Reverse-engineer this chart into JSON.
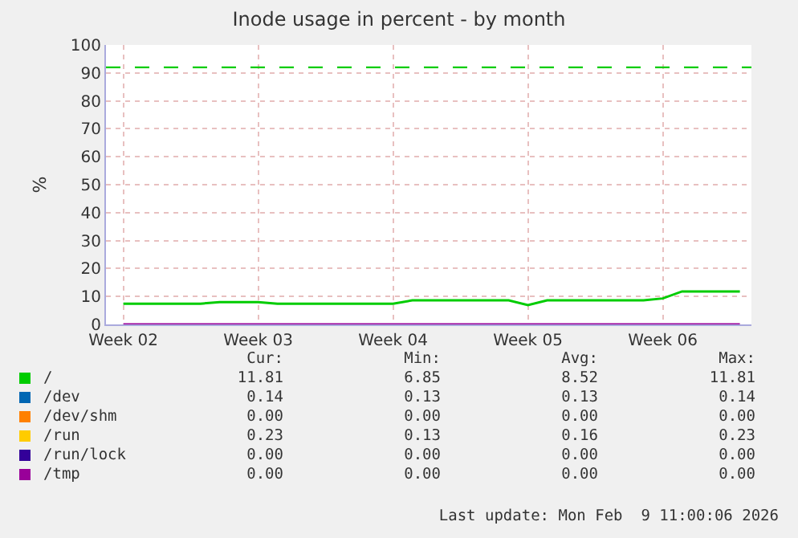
{
  "chart_data": {
    "type": "line",
    "title": "Inode usage in percent - by month",
    "ylabel": "%",
    "categories": [
      "Week 02",
      null,
      null,
      null,
      null,
      null,
      null,
      "Week 03",
      null,
      null,
      null,
      null,
      null,
      null,
      "Week 04",
      null,
      null,
      null,
      null,
      null,
      null,
      "Week 05",
      null,
      null,
      null,
      null,
      null,
      null,
      "Week 06",
      null,
      null,
      null,
      null
    ],
    "ylim": [
      0,
      100
    ],
    "yticks": [
      0,
      10,
      20,
      30,
      40,
      50,
      60,
      70,
      80,
      90,
      100
    ],
    "grid": true,
    "legend": "bottom",
    "line_style": "solid",
    "marker": "none",
    "series": [
      {
        "name": "/",
        "color": "#00cc00",
        "values": [
          7.4,
          7.4,
          7.4,
          7.4,
          7.4,
          8.0,
          8.0,
          8.0,
          7.4,
          7.4,
          7.4,
          7.4,
          7.4,
          7.4,
          7.4,
          8.6,
          8.6,
          8.6,
          8.6,
          8.6,
          8.6,
          6.9,
          8.6,
          8.6,
          8.6,
          8.6,
          8.6,
          8.6,
          9.3,
          11.8,
          11.8,
          11.8,
          11.8
        ]
      },
      {
        "name": "/dev",
        "color": "#0066b3",
        "values": [
          null,
          null,
          null,
          null,
          null,
          null,
          null,
          null,
          null,
          null,
          null,
          null,
          null,
          null,
          null,
          null,
          null,
          null,
          null,
          null,
          null,
          null,
          null,
          null,
          null,
          null,
          null,
          null,
          null,
          null,
          null,
          null,
          null
        ]
      },
      {
        "name": "/dev/shm",
        "color": "#ff8000",
        "values": [
          null,
          null,
          null,
          null,
          null,
          null,
          null,
          null,
          null,
          null,
          null,
          null,
          null,
          null,
          null,
          null,
          null,
          null,
          null,
          null,
          null,
          null,
          null,
          null,
          null,
          null,
          null,
          null,
          null,
          null,
          null,
          null,
          null
        ]
      },
      {
        "name": "/run",
        "color": "#ffcc00",
        "values": [
          null,
          null,
          null,
          null,
          null,
          null,
          null,
          null,
          null,
          null,
          null,
          null,
          null,
          null,
          null,
          null,
          null,
          null,
          null,
          null,
          null,
          null,
          null,
          null,
          null,
          null,
          null,
          null,
          null,
          null,
          null,
          null,
          null
        ]
      },
      {
        "name": "/run/lock",
        "color": "#330099",
        "values": [
          null,
          null,
          null,
          null,
          null,
          null,
          null,
          null,
          null,
          null,
          null,
          null,
          null,
          null,
          null,
          null,
          null,
          null,
          null,
          null,
          null,
          null,
          null,
          null,
          null,
          null,
          null,
          null,
          null,
          null,
          null,
          null,
          null
        ]
      },
      {
        "name": "/tmp",
        "color": "#990099",
        "values": [
          0,
          0,
          0,
          0,
          0,
          0,
          0,
          0,
          0,
          0,
          0,
          0,
          0,
          0,
          0,
          0,
          0,
          0,
          0,
          0,
          0,
          0,
          0,
          0,
          0,
          0,
          0,
          0,
          0,
          0,
          0,
          0,
          0
        ]
      }
    ],
    "ref_lines": [
      {
        "axis": "y",
        "value": 92,
        "color": "#00cc00",
        "line_style": "dashed"
      }
    ],
    "annotations": [
      "Cur:",
      "Min:",
      "Avg:",
      "Max:",
      "11.81",
      "6.85",
      "8.52",
      "11.81",
      "0.14",
      "0.13",
      "0.13",
      "0.14",
      "0.00",
      "0.00",
      "0.00",
      "0.00",
      "0.23",
      "0.13",
      "0.16",
      "0.23",
      "0.00",
      "0.00",
      "0.00",
      "0.00",
      "0.00",
      "0.00",
      "0.00",
      "0.00",
      "Last update: Mon Feb  9 11:00:06 2026"
    ]
  }
}
